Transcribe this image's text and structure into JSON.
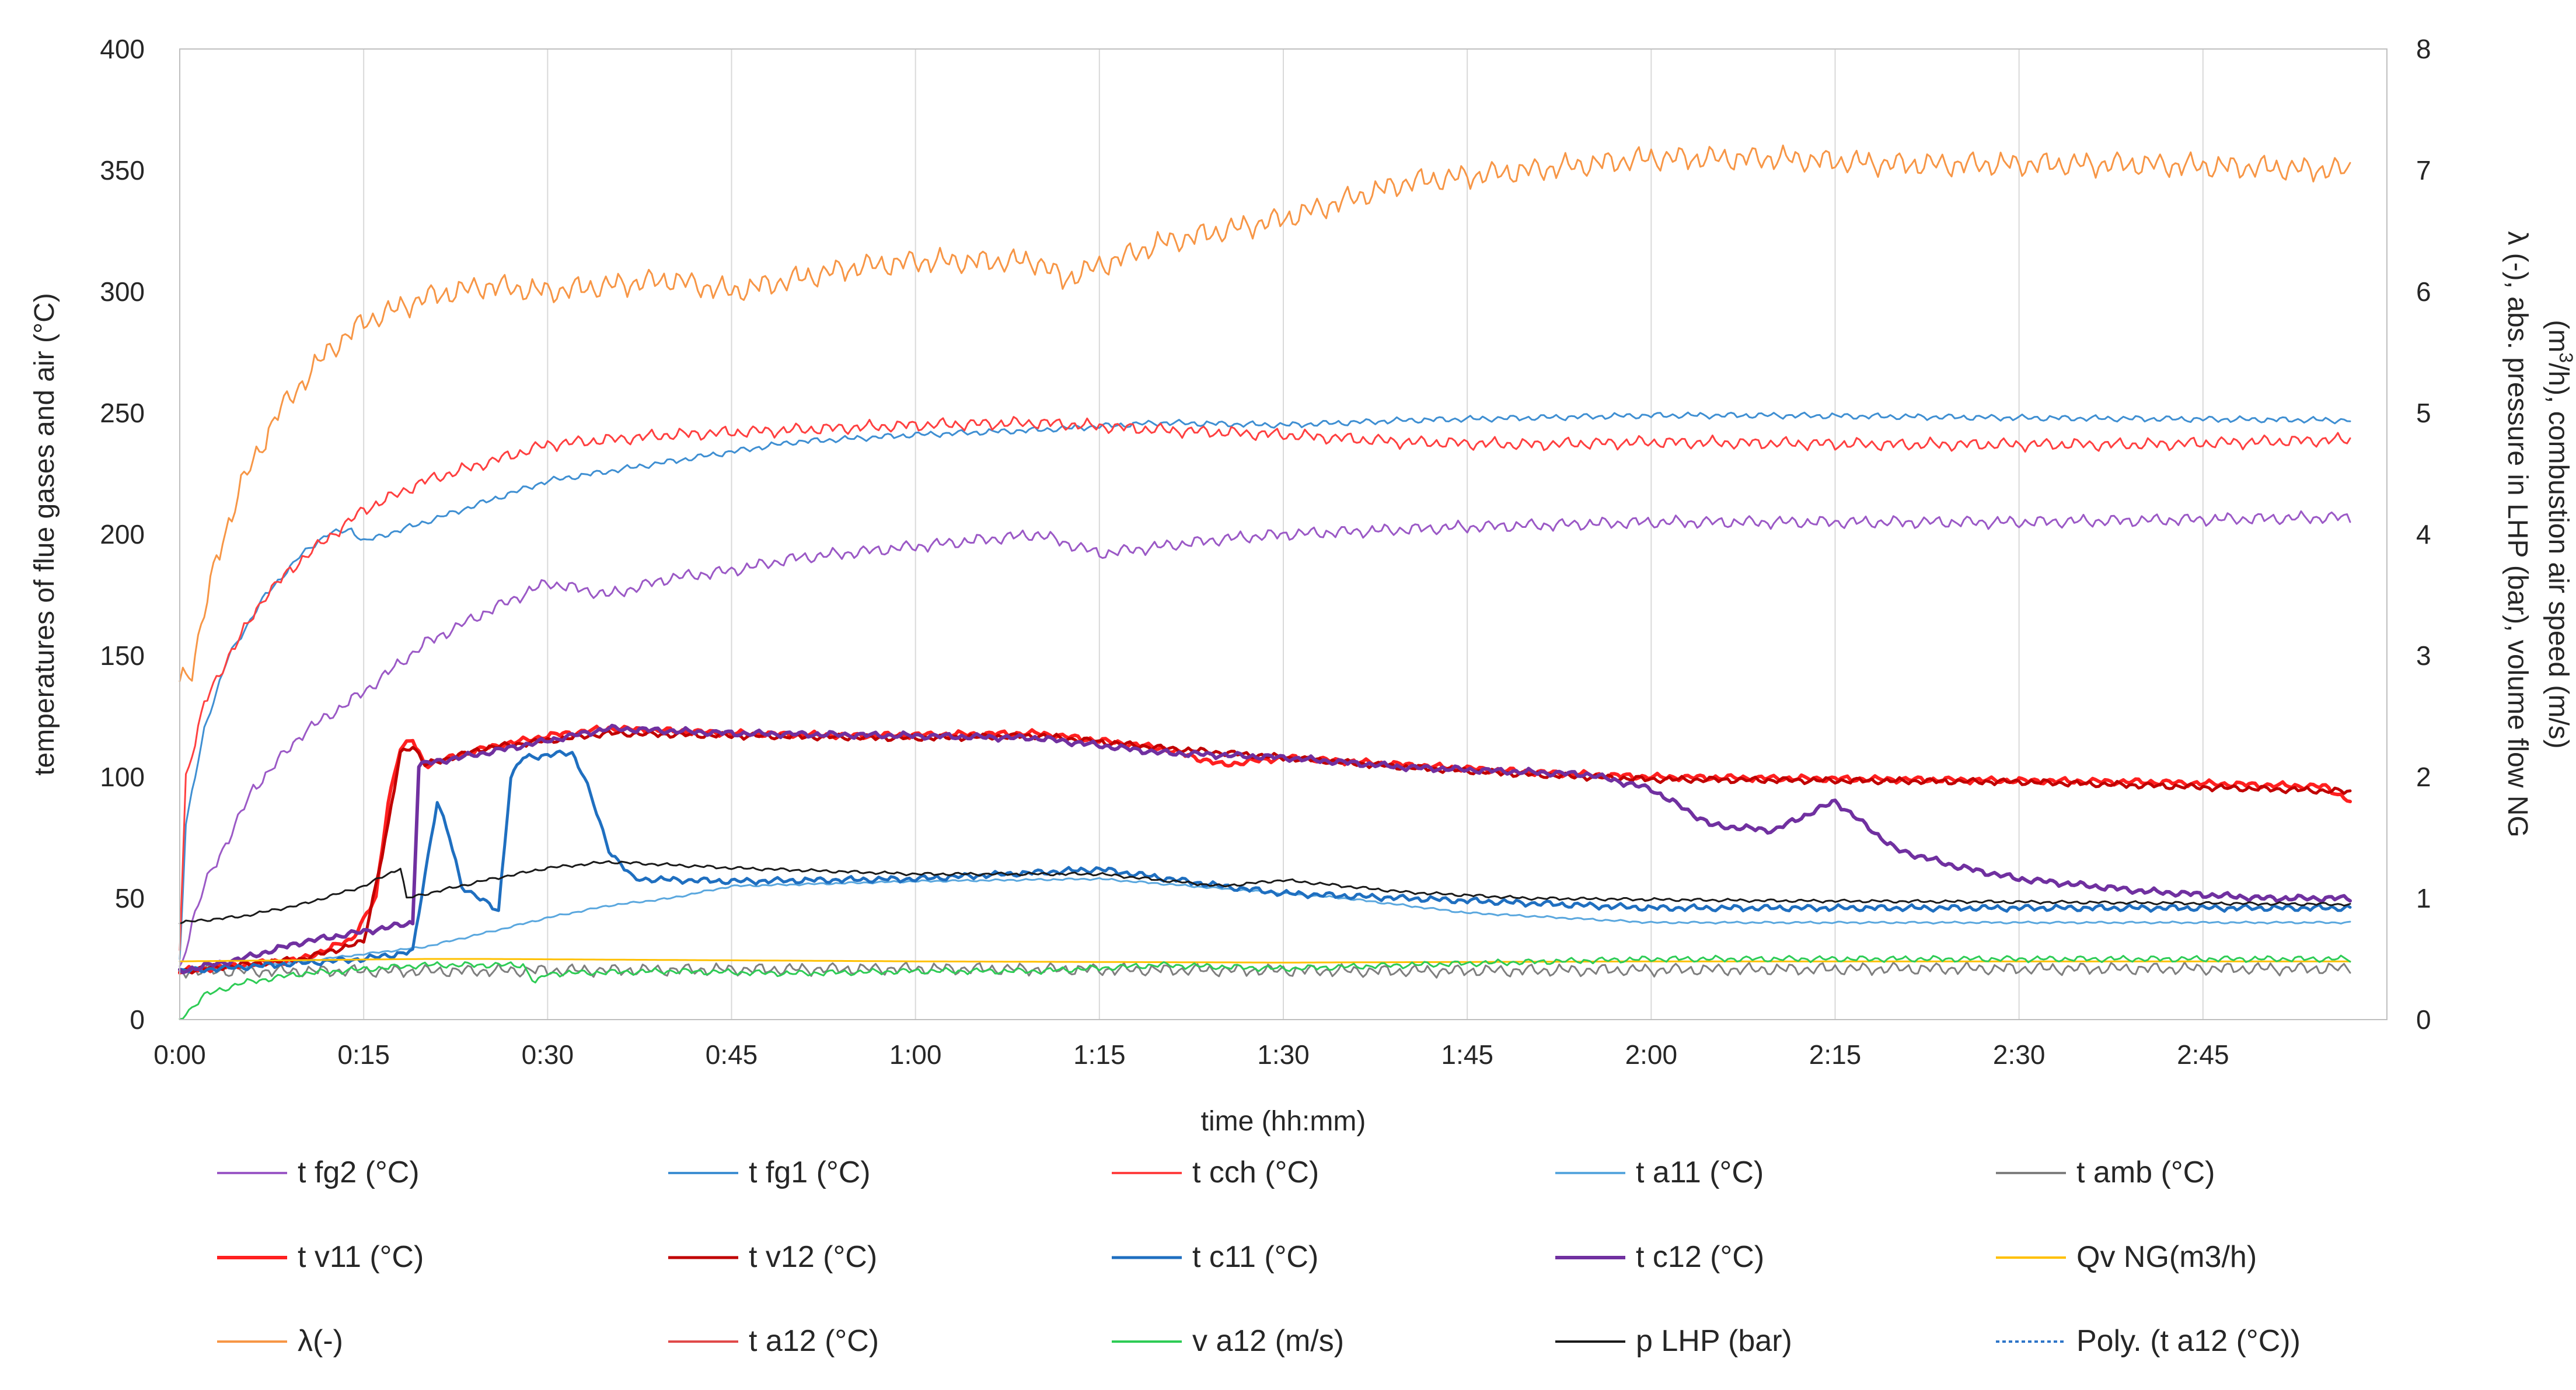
{
  "chart_data": {
    "type": "line",
    "x_axis": {
      "title": "time (hh:mm)",
      "range_minutes": [
        0,
        180
      ],
      "tick_values_minutes": [
        0,
        15,
        30,
        45,
        60,
        75,
        90,
        105,
        120,
        135,
        150,
        165
      ],
      "tick_labels": [
        "0:00",
        "0:15",
        "0:30",
        "0:45",
        "1:00",
        "1:15",
        "1:30",
        "1:45",
        "2:00",
        "2:15",
        "2:30",
        "2:45"
      ]
    },
    "y_left": {
      "title": "temperatures of flue gases and air (°C)",
      "range": [
        0,
        400
      ],
      "ticks": [
        0,
        50,
        100,
        150,
        200,
        250,
        300,
        350,
        400
      ]
    },
    "y_right": {
      "title_line1": "λ (-), abs. pressure in LHP (bar), volume flow NG",
      "title_line2_pre": "(m",
      "title_line2_sup": "3",
      "title_line2_post": "/h), combustion air speed (m/s)",
      "range": [
        0,
        8
      ],
      "ticks": [
        0,
        1,
        2,
        3,
        4,
        5,
        6,
        7,
        8
      ]
    },
    "grid": "vertical",
    "legend_position": "bottom",
    "series": [
      {
        "name": "t fg2 (°C)",
        "axis": "left",
        "color": "#9b59c6",
        "width": 3,
        "dash": "",
        "noise": 3,
        "points": [
          [
            0,
            20
          ],
          [
            1,
            40
          ],
          [
            2,
            55
          ],
          [
            4,
            75
          ],
          [
            6,
            95
          ],
          [
            10,
            118
          ],
          [
            15,
            135
          ],
          [
            20,
            155
          ],
          [
            25,
            168
          ],
          [
            30,
            180
          ],
          [
            35,
            175
          ],
          [
            40,
            182
          ],
          [
            45,
            185
          ],
          [
            50,
            190
          ],
          [
            60,
            195
          ],
          [
            70,
            200
          ],
          [
            75,
            192
          ],
          [
            85,
            198
          ],
          [
            90,
            200
          ],
          [
            105,
            203
          ],
          [
            120,
            205
          ],
          [
            150,
            205
          ],
          [
            177,
            207
          ]
        ]
      },
      {
        "name": "t fg1 (°C)",
        "axis": "left",
        "color": "#3f8fd2",
        "width": 3,
        "dash": "",
        "noise": 1.5,
        "points": [
          [
            0,
            25
          ],
          [
            0.5,
            80
          ],
          [
            2,
            120
          ],
          [
            4,
            150
          ],
          [
            7,
            175
          ],
          [
            10,
            192
          ],
          [
            12,
            200
          ],
          [
            14,
            202
          ],
          [
            15,
            197
          ],
          [
            20,
            205
          ],
          [
            30,
            222
          ],
          [
            40,
            230
          ],
          [
            50,
            238
          ],
          [
            60,
            241
          ],
          [
            70,
            243
          ],
          [
            80,
            246
          ],
          [
            90,
            245
          ],
          [
            100,
            247
          ],
          [
            110,
            248
          ],
          [
            120,
            249
          ],
          [
            130,
            249
          ],
          [
            150,
            248
          ],
          [
            177,
            247
          ]
        ]
      },
      {
        "name": "t cch (°C)",
        "axis": "left",
        "color": "#ff4040",
        "width": 3,
        "dash": "",
        "noise": 3,
        "points": [
          [
            0,
            30
          ],
          [
            0.5,
            100
          ],
          [
            2,
            130
          ],
          [
            4,
            150
          ],
          [
            7,
            175
          ],
          [
            10,
            190
          ],
          [
            15,
            210
          ],
          [
            20,
            222
          ],
          [
            30,
            237
          ],
          [
            40,
            241
          ],
          [
            50,
            243
          ],
          [
            60,
            245
          ],
          [
            70,
            246
          ],
          [
            80,
            243
          ],
          [
            90,
            241
          ],
          [
            100,
            238
          ],
          [
            110,
            237
          ],
          [
            120,
            238
          ],
          [
            140,
            237
          ],
          [
            160,
            237
          ],
          [
            177,
            239
          ]
        ]
      },
      {
        "name": "t a11 (°C)",
        "axis": "left",
        "color": "#5aa7de",
        "width": 3,
        "dash": "",
        "noise": 0.5,
        "points": [
          [
            0,
            20
          ],
          [
            10,
            24
          ],
          [
            20,
            30
          ],
          [
            26,
            37
          ],
          [
            30,
            42
          ],
          [
            35,
            47
          ],
          [
            40,
            50
          ],
          [
            45,
            55
          ],
          [
            60,
            57
          ],
          [
            75,
            58
          ],
          [
            90,
            52
          ],
          [
            95,
            50
          ],
          [
            105,
            44
          ],
          [
            120,
            40
          ],
          [
            150,
            40
          ],
          [
            177,
            40
          ]
        ]
      },
      {
        "name": "t amb (°C)",
        "axis": "left",
        "color": "#7f7f7f",
        "width": 3,
        "dash": "",
        "noise": 3,
        "points": [
          [
            0,
            20
          ],
          [
            20,
            20
          ],
          [
            60,
            21
          ],
          [
            100,
            20
          ],
          [
            140,
            21
          ],
          [
            177,
            21
          ]
        ]
      },
      {
        "name": "t v11 (°C)",
        "axis": "left",
        "color": "#ff2020",
        "width": 6,
        "dash": "",
        "noise": 1.5,
        "points": [
          [
            0,
            20
          ],
          [
            10,
            25
          ],
          [
            14,
            33
          ],
          [
            16,
            50
          ],
          [
            17,
            90
          ],
          [
            18,
            112
          ],
          [
            19,
            115
          ],
          [
            20,
            105
          ],
          [
            25,
            112
          ],
          [
            30,
            117
          ],
          [
            35,
            120
          ],
          [
            45,
            118
          ],
          [
            55,
            117
          ],
          [
            70,
            118
          ],
          [
            80,
            112
          ],
          [
            85,
            105
          ],
          [
            90,
            108
          ],
          [
            100,
            105
          ],
          [
            110,
            102
          ],
          [
            120,
            100
          ],
          [
            140,
            99
          ],
          [
            160,
            98
          ],
          [
            175,
            96
          ],
          [
            177,
            90
          ]
        ]
      },
      {
        "name": "t v12 (°C)",
        "axis": "left",
        "color": "#c00000",
        "width": 5,
        "dash": "",
        "noise": 1.5,
        "points": [
          [
            0,
            20
          ],
          [
            10,
            25
          ],
          [
            15,
            32
          ],
          [
            17,
            80
          ],
          [
            18,
            110
          ],
          [
            19,
            113
          ],
          [
            20,
            105
          ],
          [
            25,
            112
          ],
          [
            35,
            118
          ],
          [
            45,
            117
          ],
          [
            60,
            116
          ],
          [
            70,
            117
          ],
          [
            80,
            112
          ],
          [
            90,
            108
          ],
          [
            100,
            104
          ],
          [
            110,
            101
          ],
          [
            120,
            99
          ],
          [
            150,
            98
          ],
          [
            177,
            94
          ]
        ]
      },
      {
        "name": "t c11 (°C)",
        "axis": "left",
        "color": "#1f6fc0",
        "width": 5,
        "dash": "",
        "noise": 1.5,
        "points": [
          [
            0,
            20
          ],
          [
            15,
            25
          ],
          [
            19,
            28
          ],
          [
            20,
            60
          ],
          [
            21,
            90
          ],
          [
            22,
            75
          ],
          [
            23,
            55
          ],
          [
            25,
            48
          ],
          [
            26,
            45
          ],
          [
            27,
            100
          ],
          [
            28,
            108
          ],
          [
            32,
            110
          ],
          [
            33,
            100
          ],
          [
            35,
            70
          ],
          [
            37,
            58
          ],
          [
            45,
            57
          ],
          [
            60,
            58
          ],
          [
            75,
            62
          ],
          [
            85,
            55
          ],
          [
            90,
            52
          ],
          [
            100,
            50
          ],
          [
            110,
            48
          ],
          [
            120,
            46
          ],
          [
            150,
            46
          ],
          [
            177,
            46
          ]
        ]
      },
      {
        "name": "t c12 (°C)",
        "axis": "left",
        "color": "#7030a0",
        "width": 6,
        "dash": "",
        "noise": 1.5,
        "points": [
          [
            0,
            20
          ],
          [
            5,
            25
          ],
          [
            10,
            32
          ],
          [
            17,
            38
          ],
          [
            19,
            40
          ],
          [
            19.5,
            105
          ],
          [
            25,
            110
          ],
          [
            35,
            120
          ],
          [
            45,
            118
          ],
          [
            60,
            117
          ],
          [
            70,
            116
          ],
          [
            80,
            110
          ],
          [
            90,
            108
          ],
          [
            100,
            104
          ],
          [
            115,
            101
          ],
          [
            120,
            95
          ],
          [
            125,
            80
          ],
          [
            130,
            78
          ],
          [
            135,
            90
          ],
          [
            140,
            70
          ],
          [
            145,
            63
          ],
          [
            150,
            58
          ],
          [
            160,
            53
          ],
          [
            170,
            50
          ],
          [
            177,
            50
          ]
        ]
      },
      {
        "name": "Qv NG(m3/h)",
        "axis": "right",
        "color": "#ffc000",
        "width": 3,
        "dash": "",
        "noise": 0,
        "points": [
          [
            0,
            0.48
          ],
          [
            20,
            0.5
          ],
          [
            25,
            0.5
          ],
          [
            60,
            0.48
          ],
          [
            90,
            0.47
          ],
          [
            120,
            0.48
          ],
          [
            177,
            0.48
          ]
        ]
      },
      {
        "name": "λ(-)",
        "axis": "right",
        "color": "#f79646",
        "width": 3,
        "dash": "",
        "noise": 0.12,
        "points": [
          [
            0,
            2.8
          ],
          [
            1,
            2.9
          ],
          [
            3,
            3.8
          ],
          [
            5,
            4.4
          ],
          [
            8,
            5.0
          ],
          [
            12,
            5.5
          ],
          [
            15,
            5.75
          ],
          [
            20,
            5.95
          ],
          [
            25,
            6.05
          ],
          [
            30,
            6.0
          ],
          [
            40,
            6.1
          ],
          [
            45,
            6.0
          ],
          [
            55,
            6.2
          ],
          [
            60,
            6.25
          ],
          [
            70,
            6.25
          ],
          [
            72,
            6.1
          ],
          [
            80,
            6.4
          ],
          [
            90,
            6.6
          ],
          [
            100,
            6.9
          ],
          [
            110,
            7.0
          ],
          [
            120,
            7.1
          ],
          [
            130,
            7.1
          ],
          [
            140,
            7.05
          ],
          [
            160,
            7.05
          ],
          [
            177,
            7.0
          ]
        ]
      },
      {
        "name": "t a12 (°C)",
        "axis": "left",
        "color": "#e04a4a",
        "width": 2,
        "dash": "",
        "noise": 0,
        "points": []
      },
      {
        "name": "v a12 (m/s)",
        "axis": "right",
        "color": "#2ecc55",
        "width": 3,
        "dash": "",
        "noise": 0.03,
        "points": [
          [
            0,
            0
          ],
          [
            1,
            0.1
          ],
          [
            2,
            0.2
          ],
          [
            5,
            0.3
          ],
          [
            10,
            0.38
          ],
          [
            20,
            0.45
          ],
          [
            28,
            0.45
          ],
          [
            29,
            0.3
          ],
          [
            30,
            0.38
          ],
          [
            40,
            0.4
          ],
          [
            50,
            0.38
          ],
          [
            60,
            0.4
          ],
          [
            70,
            0.4
          ],
          [
            80,
            0.45
          ],
          [
            90,
            0.42
          ],
          [
            100,
            0.45
          ],
          [
            120,
            0.5
          ],
          [
            150,
            0.5
          ],
          [
            177,
            0.5
          ]
        ]
      },
      {
        "name": "p LHP (bar)",
        "axis": "right",
        "color": "#1a1a1a",
        "width": 3,
        "dash": "",
        "noise": 0.015,
        "points": [
          [
            0,
            0.8
          ],
          [
            5,
            0.85
          ],
          [
            10,
            0.95
          ],
          [
            15,
            1.1
          ],
          [
            18,
            1.25
          ],
          [
            18.5,
            1.0
          ],
          [
            25,
            1.15
          ],
          [
            30,
            1.25
          ],
          [
            35,
            1.3
          ],
          [
            45,
            1.25
          ],
          [
            60,
            1.2
          ],
          [
            75,
            1.2
          ],
          [
            85,
            1.1
          ],
          [
            90,
            1.15
          ],
          [
            100,
            1.05
          ],
          [
            110,
            1.0
          ],
          [
            130,
            0.98
          ],
          [
            150,
            0.97
          ],
          [
            177,
            0.95
          ]
        ]
      },
      {
        "name": "Poly. (t a12 (°C))",
        "axis": "left",
        "color": "#2e75c8",
        "width": 4,
        "dash": "4,4",
        "noise": 0,
        "points": []
      }
    ]
  }
}
